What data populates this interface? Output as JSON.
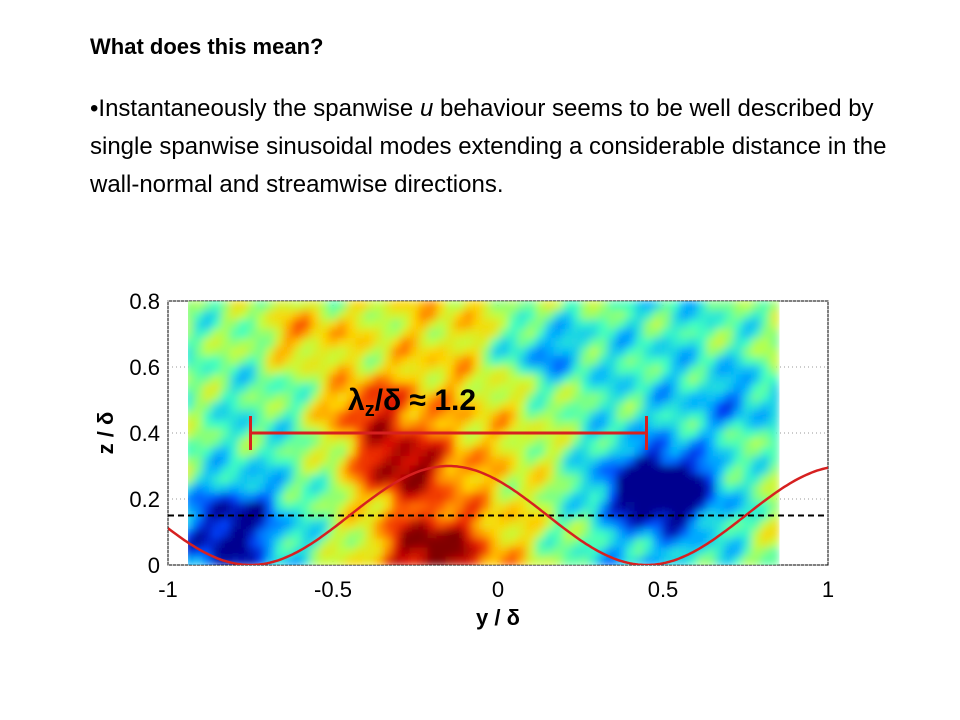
{
  "slide": {
    "heading": "What does this mean?",
    "bullet_marker": "•",
    "bullet_before": "Instantaneously the spanwise ",
    "bullet_var": "u",
    "bullet_after": " behaviour seems to be well described by single spanwise sinusoidal modes extending a considerable distance in the wall-normal and streamwise directions."
  },
  "colors": {
    "curve": "#d62020",
    "dashed": "#000000",
    "grid": "#9a9a9a",
    "colormap": [
      "#00008f",
      "#0044ff",
      "#00b4ff",
      "#40ffc0",
      "#c0ff40",
      "#ffd400",
      "#ff6000",
      "#e01000",
      "#800000"
    ]
  },
  "chart_data": {
    "type": "heatmap",
    "xlabel": "y / δ",
    "ylabel": "z / δ",
    "xlim": [
      -1,
      1
    ],
    "ylim": [
      0,
      0.8
    ],
    "xticks": [
      -1,
      -0.5,
      0,
      0.5,
      1
    ],
    "yticks": [
      0,
      0.2,
      0.4,
      0.6,
      0.8
    ],
    "xtick_labels": [
      "-1",
      "-0.5",
      "0",
      "0.5",
      "1"
    ],
    "ytick_labels": [
      "0",
      "0.2",
      "0.4",
      "0.6",
      "0.8"
    ],
    "grid": "dotted",
    "heatmap_extent": {
      "x": [
        -0.95,
        0.85
      ],
      "y": [
        0,
        0.8
      ]
    },
    "field_features": [
      {
        "y": -0.2,
        "z": 0.05,
        "value": 1.0
      },
      {
        "y": -0.3,
        "z": 0.3,
        "value": 0.95
      },
      {
        "y": -0.4,
        "z": 0.47,
        "value": 0.75
      },
      {
        "y": -0.6,
        "z": 0.7,
        "value": 0.55
      },
      {
        "y": 0.45,
        "z": 0.24,
        "value": -0.95
      },
      {
        "y": 0.55,
        "z": 0.22,
        "value": -0.7
      },
      {
        "y": 0.12,
        "z": 0.65,
        "value": -0.65
      },
      {
        "y": -0.8,
        "z": 0.15,
        "value": -0.75
      },
      {
        "y": -0.85,
        "z": 0.03,
        "value": -0.6
      },
      {
        "y": 0.75,
        "z": 0.5,
        "value": -0.45
      }
    ],
    "sinusoid": {
      "label": "",
      "amplitude": 0.15,
      "offset": 0.15,
      "wavelength": 1.2,
      "peak_at": -0.15,
      "x_range": [
        -1,
        1
      ]
    },
    "reference_line": {
      "z": 0.15,
      "style": "dashed"
    },
    "wavelength_bracket": {
      "y_start": -0.75,
      "y_end": 0.45,
      "z": 0.4
    },
    "annotation": {
      "symbol": "λ",
      "subscript": "z",
      "rest": "/δ ≈ 1.2"
    }
  }
}
